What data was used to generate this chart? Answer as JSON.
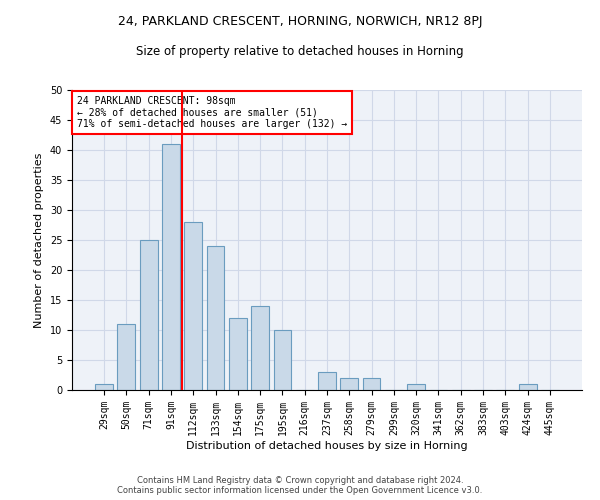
{
  "title1": "24, PARKLAND CRESCENT, HORNING, NORWICH, NR12 8PJ",
  "title2": "Size of property relative to detached houses in Horning",
  "xlabel": "Distribution of detached houses by size in Horning",
  "ylabel": "Number of detached properties",
  "bar_categories": [
    "29sqm",
    "50sqm",
    "71sqm",
    "91sqm",
    "112sqm",
    "133sqm",
    "154sqm",
    "175sqm",
    "195sqm",
    "216sqm",
    "237sqm",
    "258sqm",
    "279sqm",
    "299sqm",
    "320sqm",
    "341sqm",
    "362sqm",
    "383sqm",
    "403sqm",
    "424sqm",
    "445sqm"
  ],
  "bar_values": [
    1,
    11,
    25,
    41,
    28,
    24,
    12,
    14,
    10,
    0,
    3,
    2,
    2,
    0,
    1,
    0,
    0,
    0,
    0,
    1,
    0
  ],
  "bar_color": "#c9d9e8",
  "bar_edge_color": "#6a9cbf",
  "property_line_x": 3.5,
  "annotation_text": "24 PARKLAND CRESCENT: 98sqm\n← 28% of detached houses are smaller (51)\n71% of semi-detached houses are larger (132) →",
  "annotation_box_color": "white",
  "annotation_box_edge_color": "red",
  "vline_color": "red",
  "ylim": [
    0,
    50
  ],
  "yticks": [
    0,
    5,
    10,
    15,
    20,
    25,
    30,
    35,
    40,
    45,
    50
  ],
  "grid_color": "#d0d8e8",
  "background_color": "#eef2f8",
  "footer_text": "Contains HM Land Registry data © Crown copyright and database right 2024.\nContains public sector information licensed under the Open Government Licence v3.0.",
  "title1_fontsize": 9,
  "title2_fontsize": 8.5,
  "xlabel_fontsize": 8,
  "ylabel_fontsize": 8,
  "annotation_fontsize": 7,
  "tick_fontsize": 7
}
